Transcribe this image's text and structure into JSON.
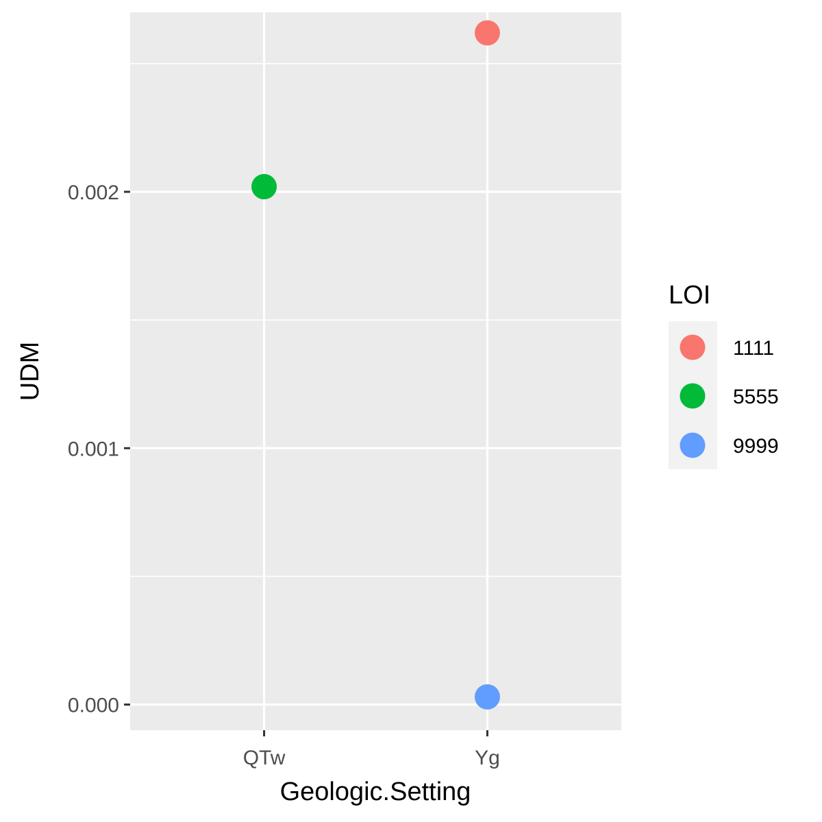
{
  "chart_data": {
    "type": "scatter",
    "title": "",
    "xlabel": "Geologic.Setting",
    "ylabel": "UDM",
    "categories": [
      "QTw",
      "Yg"
    ],
    "ylim": [
      -0.0001,
      0.0027
    ],
    "yticks": [
      0.0,
      0.001,
      0.002
    ],
    "ytick_labels": [
      "0.000",
      "0.001",
      "0.002"
    ],
    "grid": true,
    "legend": {
      "title": "LOI",
      "placement": "right",
      "entries": [
        {
          "label": "1111",
          "color": "#F8766D"
        },
        {
          "label": "5555",
          "color": "#00BA38"
        },
        {
          "label": "9999",
          "color": "#619CFF"
        }
      ]
    },
    "points": [
      {
        "x": "Yg",
        "y": 0.00262,
        "group": "1111",
        "color": "#F8766D"
      },
      {
        "x": "QTw",
        "y": 0.00202,
        "group": "5555",
        "color": "#00BA38"
      },
      {
        "x": "Yg",
        "y": 3e-05,
        "group": "9999",
        "color": "#619CFF"
      }
    ]
  },
  "colors": {
    "panel_background": "#EBEBEB",
    "grid": "#FFFFFF",
    "legend_key_background": "#F2F2F2"
  }
}
